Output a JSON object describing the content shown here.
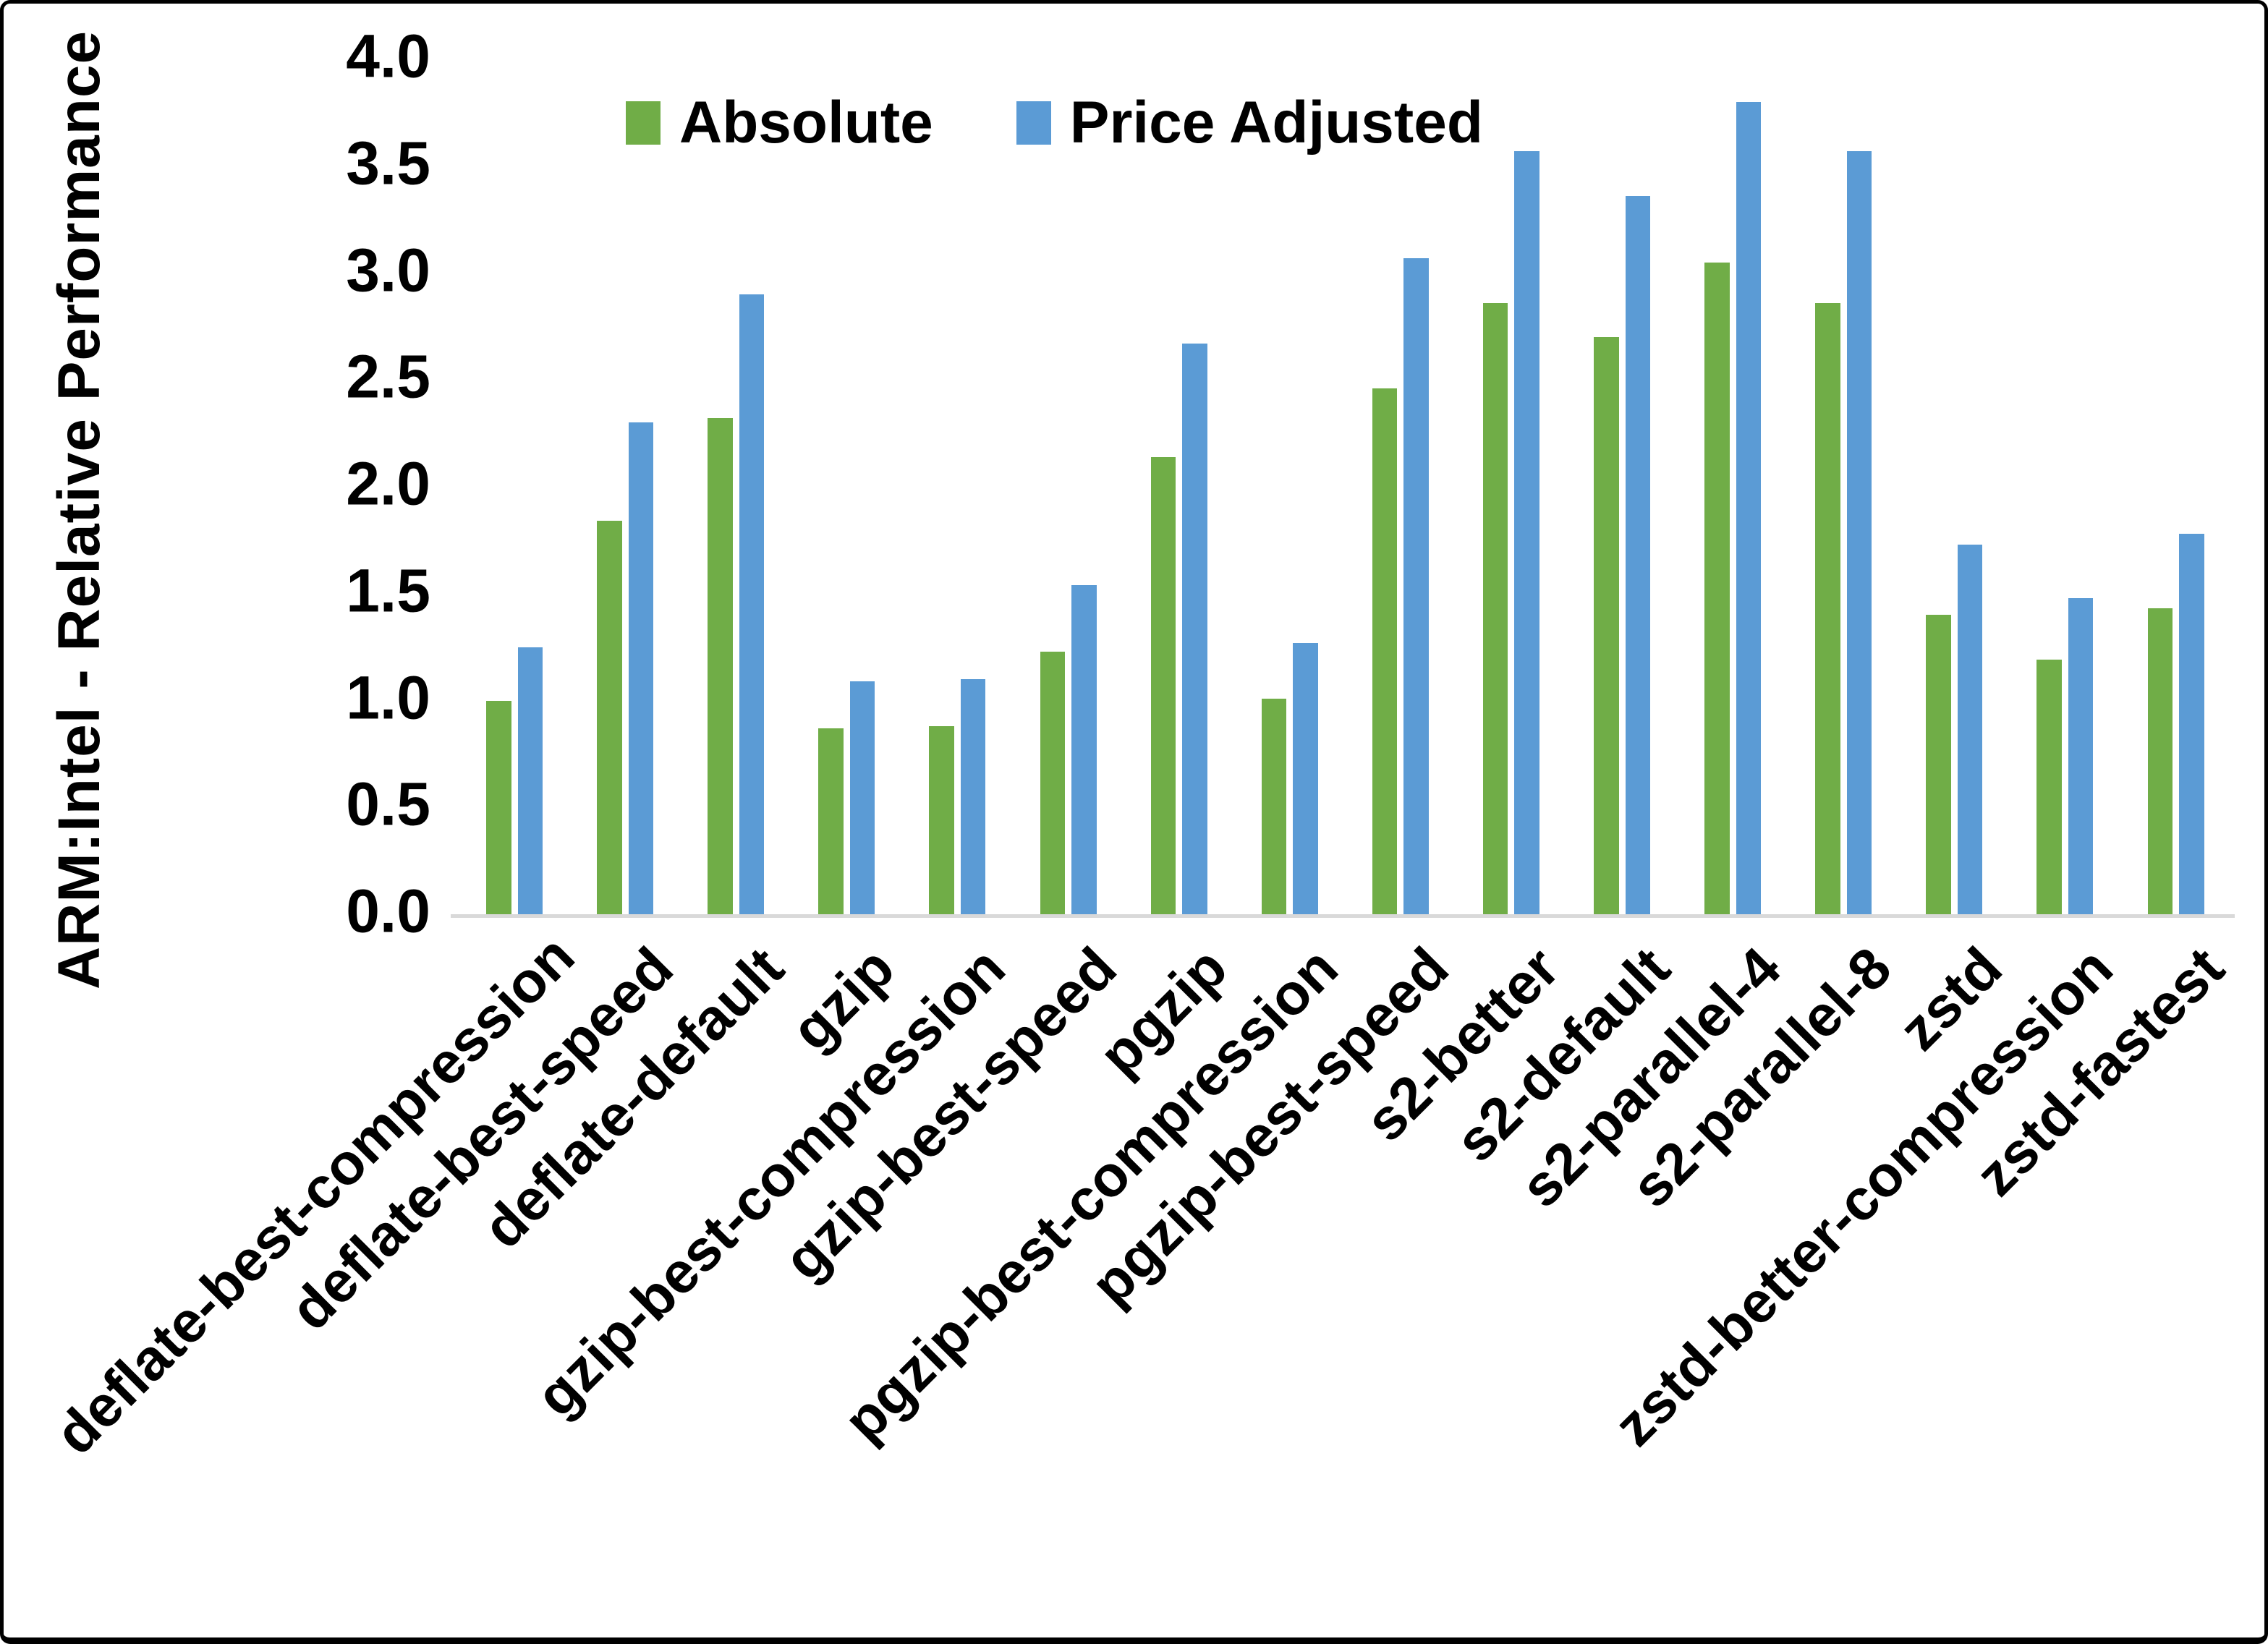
{
  "chart_data": {
    "type": "bar",
    "title": "",
    "ylabel": "ARM:Intel - Relative Performance",
    "xlabel": "",
    "ylim": [
      0.0,
      4.0
    ],
    "ytick_step": 0.5,
    "yticks": [
      0.0,
      0.5,
      1.0,
      1.5,
      2.0,
      2.5,
      3.0,
      3.5,
      4.0
    ],
    "grid": false,
    "legend_position": "top",
    "categories": [
      "deflate-best-compression",
      "deflate-best-speed",
      "deflate-default",
      "gzip",
      "gzip-best-compression",
      "gzip-best-speed",
      "pgzip",
      "pgzip-best-compression",
      "pgzip-best-speed",
      "s2-better",
      "s2-default",
      "s2-parallel-4",
      "s2-parallel-8",
      "zstd",
      "zstd-better-compression",
      "zstd-fastest"
    ],
    "series": [
      {
        "name": "Absolute",
        "color": "#70AD47",
        "values": [
          1.0,
          1.84,
          2.32,
          0.87,
          0.88,
          1.23,
          2.14,
          1.01,
          2.46,
          2.86,
          2.7,
          3.05,
          2.86,
          1.4,
          1.19,
          1.43
        ]
      },
      {
        "name": "Price Adjusted",
        "color": "#5B9BD5",
        "values": [
          1.25,
          2.3,
          2.9,
          1.09,
          1.1,
          1.54,
          2.67,
          1.27,
          3.07,
          3.57,
          3.36,
          3.8,
          3.57,
          1.73,
          1.48,
          1.78
        ]
      }
    ],
    "colors": {
      "axis_line": "#d9d9d9",
      "text": "#000000",
      "frame_border": "#000000"
    }
  }
}
